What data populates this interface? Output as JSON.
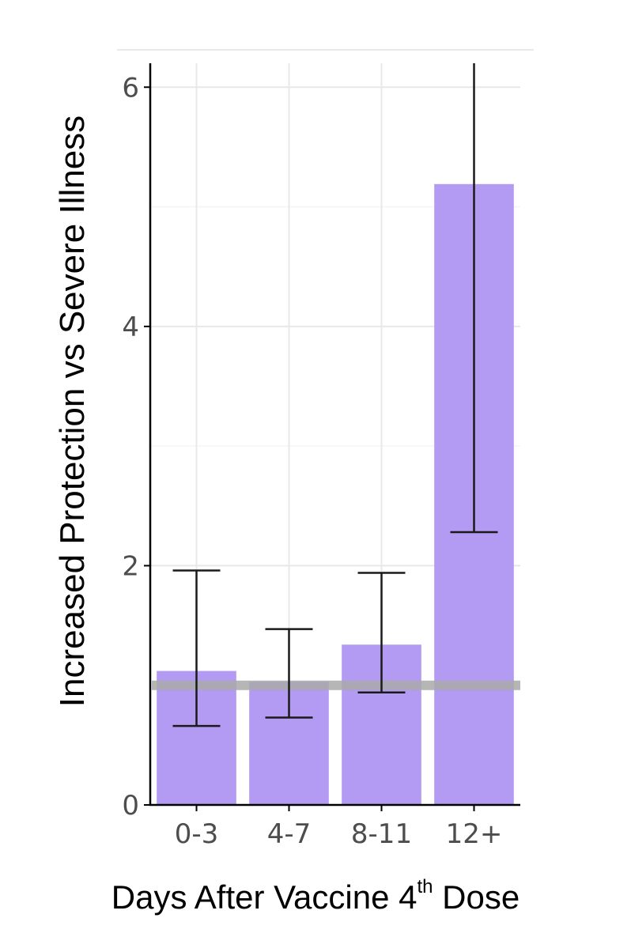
{
  "chart_data": {
    "type": "bar",
    "title": "",
    "xlabel_main": "Days After Vaccine 4",
    "xlabel_sup": "th",
    "xlabel_end": " Dose",
    "ylabel": "Increased Protection vs Severe Illness",
    "categories": [
      "0-3",
      "4-7",
      "8-11",
      "12+"
    ],
    "values": [
      1.12,
      1.03,
      1.34,
      5.19
    ],
    "error_low": [
      0.66,
      0.73,
      0.94,
      2.28
    ],
    "error_high": [
      1.96,
      1.47,
      1.94,
      6.2
    ],
    "reference_line": 1.0,
    "ylim": [
      0,
      6.2
    ],
    "yticks": [
      0,
      2,
      4,
      6
    ],
    "grid": true,
    "colors": {
      "bar": "#b39af3",
      "error_bar": "#1a1a1a",
      "reference_line": "#a9a9a9",
      "grid": "#e8e8e8",
      "axis": "#000000",
      "tick_label": "#4d4d4d"
    }
  }
}
